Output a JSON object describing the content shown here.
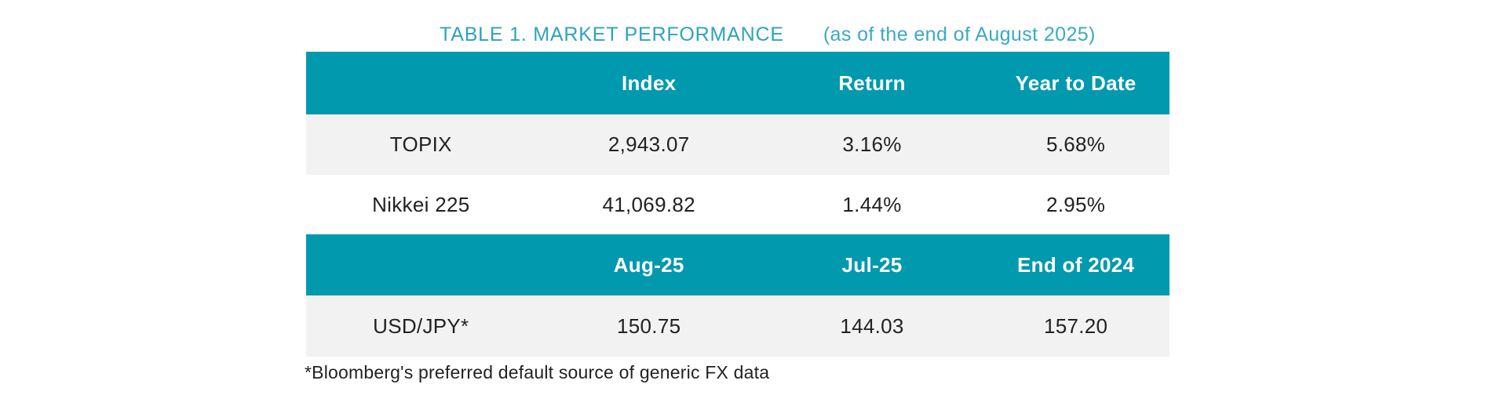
{
  "title": {
    "main": "TABLE 1. MARKET PERFORMANCE",
    "as_of": "(as of the end of August 2025)"
  },
  "table": {
    "rows": [
      {
        "kind": "header",
        "cells": [
          "",
          "Index",
          "Return",
          "Year to Date"
        ]
      },
      {
        "kind": "data",
        "cells": [
          "TOPIX",
          "2,943.07",
          "3.16%",
          "5.68%"
        ]
      },
      {
        "kind": "data",
        "cells": [
          "Nikkei 225",
          "41,069.82",
          "1.44%",
          "2.95%"
        ]
      },
      {
        "kind": "header",
        "cells": [
          "",
          "Aug-25",
          "Jul-25",
          "End of 2024"
        ]
      },
      {
        "kind": "data",
        "cells": [
          "USD/JPY*",
          "150.75",
          "144.03",
          "157.20"
        ]
      }
    ]
  },
  "footnote": "*Bloomberg's preferred default source of generic FX data",
  "colors": {
    "teal_header_bg": "#0099AE",
    "header_text": "#FFFFFF",
    "row_alt_bg": "#F2F2F2",
    "body_text": "#212222",
    "title_main": "#2EA2C0",
    "title_asof": "#3AA9C6"
  },
  "chart_data": {
    "type": "table",
    "title": "TABLE 1. MARKET PERFORMANCE (as of the end of August 2025)",
    "sections": [
      {
        "columns": [
          "",
          "Index",
          "Return",
          "Year to Date"
        ],
        "rows": [
          [
            "TOPIX",
            "2,943.07",
            "3.16%",
            "5.68%"
          ],
          [
            "Nikkei 225",
            "41,069.82",
            "1.44%",
            "2.95%"
          ]
        ]
      },
      {
        "columns": [
          "",
          "Aug-25",
          "Jul-25",
          "End of 2024"
        ],
        "rows": [
          [
            "USD/JPY*",
            "150.75",
            "144.03",
            "157.20"
          ]
        ]
      }
    ],
    "footnote": "*Bloomberg's preferred default source of generic FX data",
    "layout": {
      "grid": false,
      "header_style": "teal-band",
      "row_striping": "gray-white"
    }
  }
}
